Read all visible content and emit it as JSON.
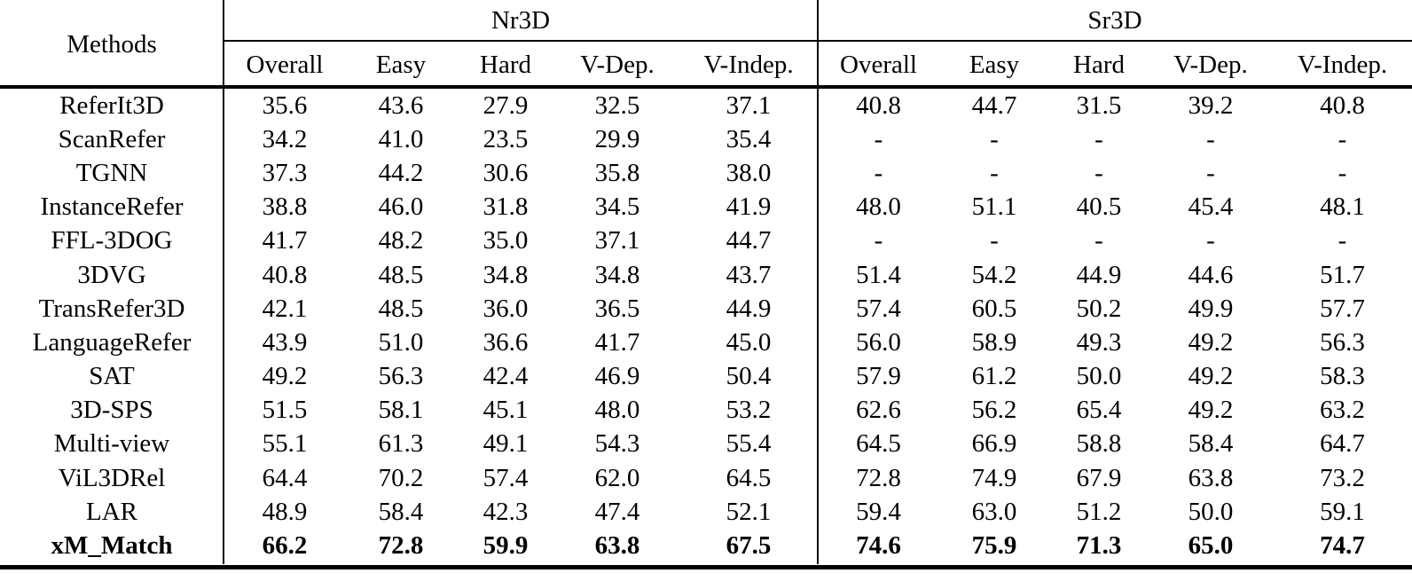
{
  "table": {
    "methods_header": "Methods",
    "col_groups": {
      "nr3d_label": "Nr3D",
      "sr3d_label": "Sr3D"
    },
    "sub_headers": [
      "Overall",
      "Easy",
      "Hard",
      "V-Dep.",
      "V-Indep."
    ],
    "rows": [
      {
        "method": "ReferIt3D",
        "bold": false,
        "nr3d": [
          "35.6",
          "43.6",
          "27.9",
          "32.5",
          "37.1"
        ],
        "sr3d": [
          "40.8",
          "44.7",
          "31.5",
          "39.2",
          "40.8"
        ]
      },
      {
        "method": "ScanRefer",
        "bold": false,
        "nr3d": [
          "34.2",
          "41.0",
          "23.5",
          "29.9",
          "35.4"
        ],
        "sr3d": [
          "-",
          "-",
          "-",
          "-",
          "-"
        ]
      },
      {
        "method": "TGNN",
        "bold": false,
        "nr3d": [
          "37.3",
          "44.2",
          "30.6",
          "35.8",
          "38.0"
        ],
        "sr3d": [
          "-",
          "-",
          "-",
          "-",
          "-"
        ]
      },
      {
        "method": "InstanceRefer",
        "bold": false,
        "nr3d": [
          "38.8",
          "46.0",
          "31.8",
          "34.5",
          "41.9"
        ],
        "sr3d": [
          "48.0",
          "51.1",
          "40.5",
          "45.4",
          "48.1"
        ]
      },
      {
        "method": "FFL-3DOG",
        "bold": false,
        "nr3d": [
          "41.7",
          "48.2",
          "35.0",
          "37.1",
          "44.7"
        ],
        "sr3d": [
          "-",
          "-",
          "-",
          "-",
          "-"
        ]
      },
      {
        "method": "3DVG",
        "bold": false,
        "nr3d": [
          "40.8",
          "48.5",
          "34.8",
          "34.8",
          "43.7"
        ],
        "sr3d": [
          "51.4",
          "54.2",
          "44.9",
          "44.6",
          "51.7"
        ]
      },
      {
        "method": "TransRefer3D",
        "bold": false,
        "nr3d": [
          "42.1",
          "48.5",
          "36.0",
          "36.5",
          "44.9"
        ],
        "sr3d": [
          "57.4",
          "60.5",
          "50.2",
          "49.9",
          "57.7"
        ]
      },
      {
        "method": "LanguageRefer",
        "bold": false,
        "nr3d": [
          "43.9",
          "51.0",
          "36.6",
          "41.7",
          "45.0"
        ],
        "sr3d": [
          "56.0",
          "58.9",
          "49.3",
          "49.2",
          "56.3"
        ]
      },
      {
        "method": "SAT",
        "bold": false,
        "nr3d": [
          "49.2",
          "56.3",
          "42.4",
          "46.9",
          "50.4"
        ],
        "sr3d": [
          "57.9",
          "61.2",
          "50.0",
          "49.2",
          "58.3"
        ]
      },
      {
        "method": "3D-SPS",
        "bold": false,
        "nr3d": [
          "51.5",
          "58.1",
          "45.1",
          "48.0",
          "53.2"
        ],
        "sr3d": [
          "62.6",
          "56.2",
          "65.4",
          "49.2",
          "63.2"
        ]
      },
      {
        "method": "Multi-view",
        "bold": false,
        "nr3d": [
          "55.1",
          "61.3",
          "49.1",
          "54.3",
          "55.4"
        ],
        "sr3d": [
          "64.5",
          "66.9",
          "58.8",
          "58.4",
          "64.7"
        ]
      },
      {
        "method": "ViL3DRel",
        "bold": false,
        "nr3d": [
          "64.4",
          "70.2",
          "57.4",
          "62.0",
          "64.5"
        ],
        "sr3d": [
          "72.8",
          "74.9",
          "67.9",
          "63.8",
          "73.2"
        ]
      },
      {
        "method": "LAR",
        "bold": false,
        "nr3d": [
          "48.9",
          "58.4",
          "42.3",
          "47.4",
          "52.1"
        ],
        "sr3d": [
          "59.4",
          "63.0",
          "51.2",
          "50.0",
          "59.1"
        ]
      },
      {
        "method": "xM_Match",
        "bold": true,
        "nr3d": [
          "66.2",
          "72.8",
          "59.9",
          "63.8",
          "67.5"
        ],
        "sr3d": [
          "74.6",
          "75.9",
          "71.3",
          "65.0",
          "74.7"
        ]
      }
    ],
    "colors": {
      "text": "#000000",
      "background": "#ffffff",
      "rule": "#000000"
    }
  }
}
